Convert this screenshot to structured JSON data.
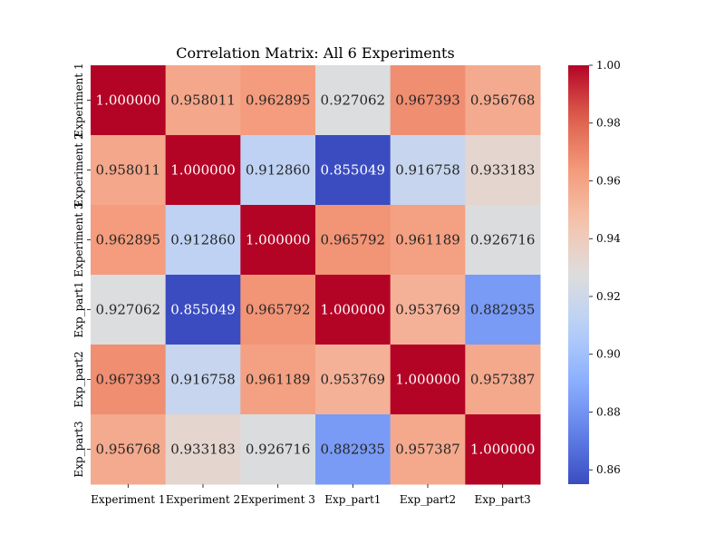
{
  "chart_data": {
    "type": "heatmap",
    "title": "Correlation Matrix: All 6 Experiments",
    "xlabel": "",
    "ylabel": "",
    "row_labels": [
      "Experiment 1",
      "Experiment 2",
      "Experiment 3",
      "Exp_part1",
      "Exp_part2",
      "Exp_part3"
    ],
    "col_labels": [
      "Experiment 1",
      "Experiment 2",
      "Experiment 3",
      "Exp_part1",
      "Exp_part2",
      "Exp_part3"
    ],
    "values": [
      [
        1.0,
        0.958011,
        0.962895,
        0.927062,
        0.967393,
        0.956768
      ],
      [
        0.958011,
        1.0,
        0.91286,
        0.855049,
        0.916758,
        0.933183
      ],
      [
        0.962895,
        0.91286,
        1.0,
        0.965792,
        0.961189,
        0.926716
      ],
      [
        0.927062,
        0.855049,
        0.965792,
        1.0,
        0.953769,
        0.882935
      ],
      [
        0.967393,
        0.916758,
        0.961189,
        0.953769,
        1.0,
        0.957387
      ],
      [
        0.956768,
        0.933183,
        0.926716,
        0.882935,
        0.957387,
        1.0
      ]
    ],
    "value_format": "6 decimals",
    "colormap": "coolwarm",
    "colorbar": {
      "range": [
        0.855049,
        1.0
      ],
      "ticks": [
        "1.00",
        "0.98",
        "0.96",
        "0.94",
        "0.92",
        "0.90",
        "0.88",
        "0.86"
      ],
      "tick_values": [
        1.0,
        0.98,
        0.96,
        0.94,
        0.92,
        0.9,
        0.88,
        0.86
      ]
    },
    "grid": false,
    "legend": "colorbar right"
  }
}
